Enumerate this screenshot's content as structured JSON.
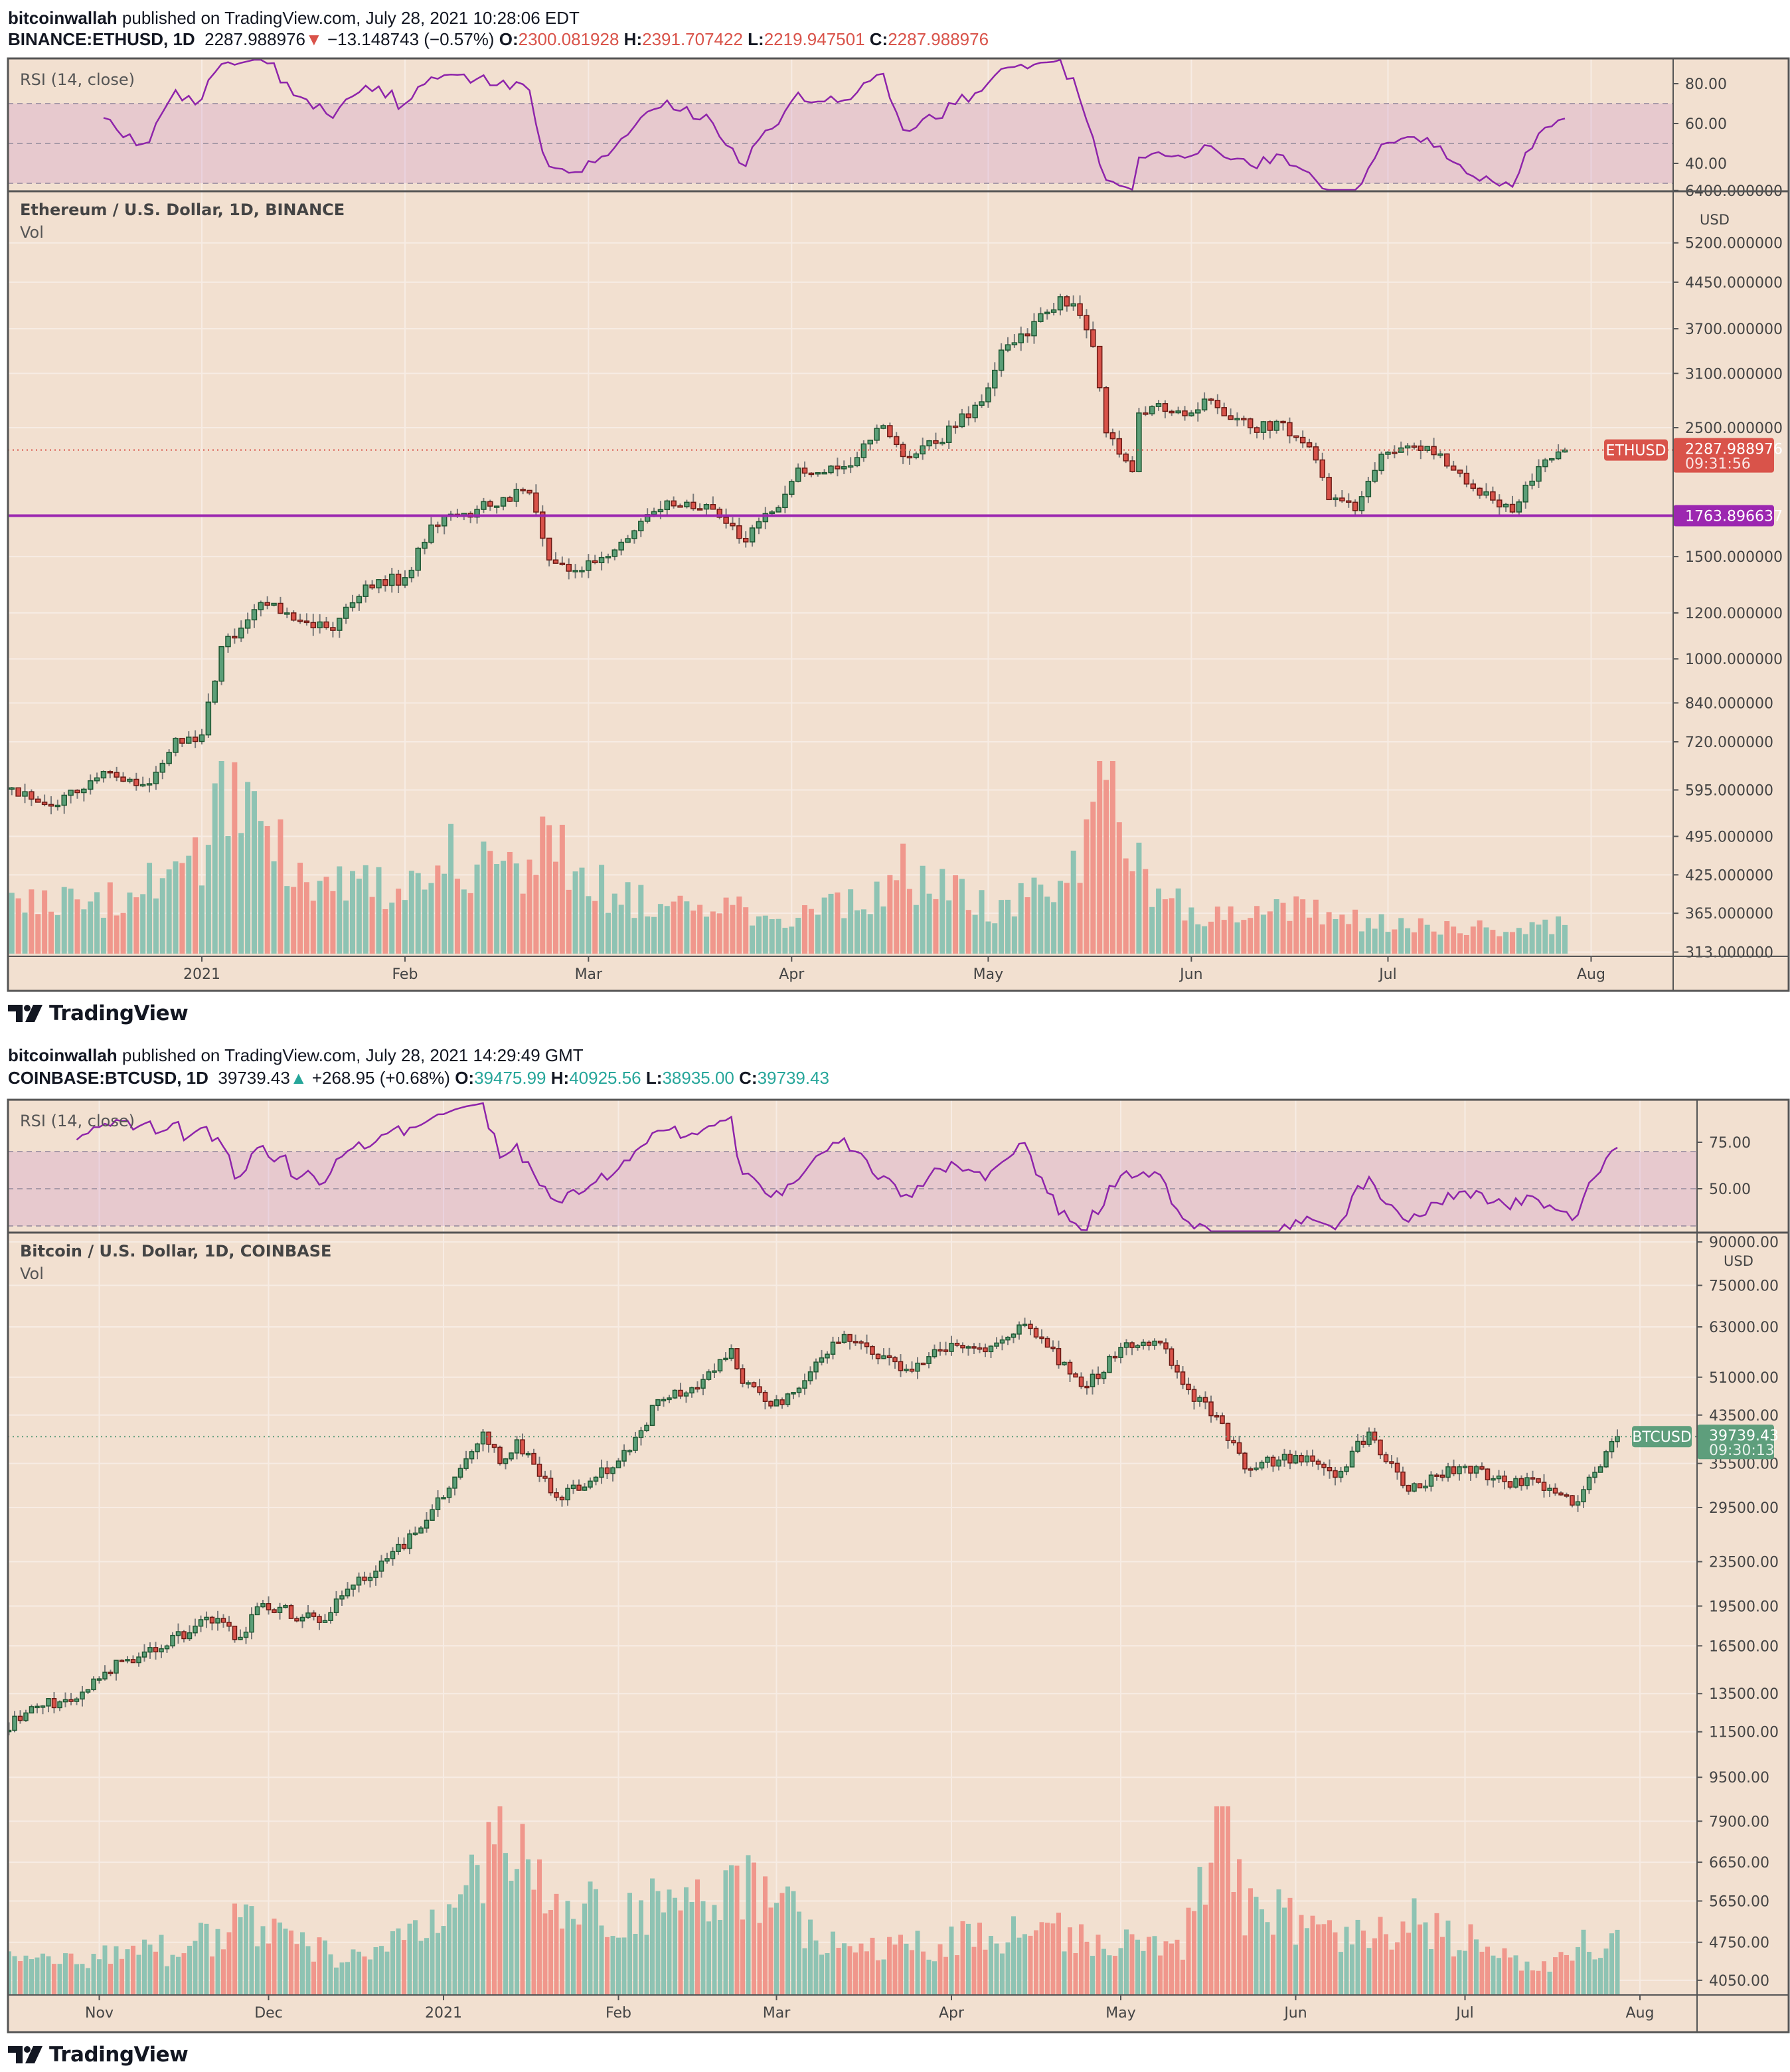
{
  "charts": [
    {
      "id": "eth",
      "header": {
        "author": "bitcoinwallah",
        "published": "published on TradingView.com, July 28, 2021 10:28:06 EDT",
        "symbol": "BINANCE:ETHUSD, 1D",
        "price": "2287.988976",
        "direction_icon": "triangle-down-icon",
        "direction_glyph": "▼",
        "change": "−13.148743 (−0.57%)",
        "o_label": "O:",
        "o": "2300.081928",
        "h_label": "H:",
        "h": "2391.707422",
        "l_label": "L:",
        "l": "2219.947501",
        "c_label": "C:",
        "c": "2287.988976",
        "value_color": "#d9534a"
      },
      "rsi_label": "RSI (14, close)",
      "title": "Ethereum / U.S. Dollar, 1D, BINANCE",
      "vol_label": "Vol",
      "currency": "USD",
      "price_ticks": [
        "6400.000000",
        "5200.000000",
        "4450.000000",
        "3700.000000",
        "3100.000000",
        "2500.000000",
        "1500.000000",
        "1200.000000",
        "1000.000000",
        "840.000000",
        "720.000000",
        "595.000000",
        "495.000000",
        "425.000000",
        "365.000000",
        "313.000000"
      ],
      "rsi_ticks": [
        "80.00",
        "60.00",
        "40.00"
      ],
      "time_ticks": [
        {
          "label": "2021",
          "date": "2021-01-01"
        },
        {
          "label": "Feb",
          "date": "2021-02-01"
        },
        {
          "label": "Mar",
          "date": "2021-03-01"
        },
        {
          "label": "Apr",
          "date": "2021-04-01"
        },
        {
          "label": "May",
          "date": "2021-05-01"
        },
        {
          "label": "Jun",
          "date": "2021-06-01"
        },
        {
          "label": "Jul",
          "date": "2021-07-01"
        },
        {
          "label": "Aug",
          "date": "2021-08-01"
        }
      ],
      "last_price": {
        "symbol": "ETHUSD",
        "value": "2287.988976",
        "countdown": "09:31:56",
        "color": "#d9534a"
      },
      "horizontal_line": {
        "value": "1763.896637",
        "color": "#9c27b0"
      }
    },
    {
      "id": "btc",
      "header": {
        "author": "bitcoinwallah",
        "published": "published on TradingView.com, July 28, 2021 14:29:49 GMT",
        "symbol": "COINBASE:BTCUSD, 1D",
        "price": "39739.43",
        "direction_icon": "triangle-up-icon",
        "direction_glyph": "▲",
        "change": "+268.95 (+0.68%)",
        "o_label": "O:",
        "o": "39475.99",
        "h_label": "H:",
        "h": "40925.56",
        "l_label": "L:",
        "l": "38935.00",
        "c_label": "C:",
        "c": "39739.43",
        "value_color": "#26a69a"
      },
      "rsi_label": "RSI (14, close)",
      "title": "Bitcoin / U.S. Dollar, 1D, COINBASE",
      "vol_label": "Vol",
      "currency": "USD",
      "price_ticks": [
        "90000.00",
        "75000.00",
        "63000.00",
        "51000.00",
        "43500.00",
        "35500.00",
        "29500.00",
        "23500.00",
        "19500.00",
        "16500.00",
        "13500.00",
        "11500.00",
        "9500.00",
        "7900.00",
        "6650.00",
        "5650.00",
        "4750.00",
        "4050.00"
      ],
      "rsi_ticks": [
        "75.00",
        "50.00"
      ],
      "time_ticks": [
        {
          "label": "Nov",
          "date": "2020-11-01"
        },
        {
          "label": "Dec",
          "date": "2020-12-01"
        },
        {
          "label": "2021",
          "date": "2021-01-01"
        },
        {
          "label": "Feb",
          "date": "2021-02-01"
        },
        {
          "label": "Mar",
          "date": "2021-03-01"
        },
        {
          "label": "Apr",
          "date": "2021-04-01"
        },
        {
          "label": "May",
          "date": "2021-05-01"
        },
        {
          "label": "Jun",
          "date": "2021-06-01"
        },
        {
          "label": "Jul",
          "date": "2021-07-01"
        },
        {
          "label": "Aug",
          "date": "2021-08-01"
        }
      ],
      "last_price": {
        "symbol": "BTCUSD",
        "value": "39739.43",
        "countdown": "09:30:13",
        "color": "#5e9e7c"
      }
    }
  ],
  "branding": "TradingView",
  "colors": {
    "background": "#f2e0d0",
    "up": "#5b9e77",
    "up_border": "#1e5631",
    "down": "#d9534a",
    "down_border": "#6b1a14",
    "vol_up": "#8ec3b3",
    "vol_down": "#f0978c",
    "rsi_line": "#8e24aa"
  },
  "chart_data": [
    {
      "type": "candlestick",
      "title": "Ethereum / U.S. Dollar, 1D, BINANCE",
      "scale": "log",
      "ylim": [
        300,
        6400
      ],
      "approx_closes": [
        [
          "2020-12-03",
          600
        ],
        [
          "2020-12-10",
          560
        ],
        [
          "2020-12-17",
          640
        ],
        [
          "2020-12-24",
          610
        ],
        [
          "2020-12-28",
          730
        ],
        [
          "2021-01-01",
          740
        ],
        [
          "2021-01-04",
          1050
        ],
        [
          "2021-01-10",
          1250
        ],
        [
          "2021-01-14",
          1200
        ],
        [
          "2021-01-21",
          1120
        ],
        [
          "2021-01-26",
          1340
        ],
        [
          "2021-02-01",
          1380
        ],
        [
          "2021-02-05",
          1700
        ],
        [
          "2021-02-10",
          1780
        ],
        [
          "2021-02-19",
          1950
        ],
        [
          "2021-02-20",
          1930
        ],
        [
          "2021-02-23",
          1480
        ],
        [
          "2021-02-28",
          1420
        ],
        [
          "2021-03-05",
          1540
        ],
        [
          "2021-03-13",
          1870
        ],
        [
          "2021-03-20",
          1810
        ],
        [
          "2021-03-25",
          1590
        ],
        [
          "2021-03-31",
          1920
        ],
        [
          "2021-04-02",
          2130
        ],
        [
          "2021-04-10",
          2150
        ],
        [
          "2021-04-15",
          2520
        ],
        [
          "2021-04-18",
          2230
        ],
        [
          "2021-04-23",
          2350
        ],
        [
          "2021-04-30",
          2770
        ],
        [
          "2021-05-03",
          3400
        ],
        [
          "2021-05-05",
          3500
        ],
        [
          "2021-05-10",
          3950
        ],
        [
          "2021-05-12",
          4200
        ],
        [
          "2021-05-15",
          3900
        ],
        [
          "2021-05-17",
          3450
        ],
        [
          "2021-05-19",
          2450
        ],
        [
          "2021-05-23",
          2100
        ],
        [
          "2021-05-24",
          2650
        ],
        [
          "2021-05-27",
          2750
        ],
        [
          "2021-06-01",
          2650
        ],
        [
          "2021-06-03",
          2800
        ],
        [
          "2021-06-10",
          2500
        ],
        [
          "2021-06-15",
          2550
        ],
        [
          "2021-06-20",
          2200
        ],
        [
          "2021-06-22",
          1880
        ],
        [
          "2021-06-26",
          1800
        ],
        [
          "2021-06-30",
          2250
        ],
        [
          "2021-07-07",
          2320
        ],
        [
          "2021-07-13",
          2000
        ],
        [
          "2021-07-20",
          1790
        ],
        [
          "2021-07-22",
          1990
        ],
        [
          "2021-07-25",
          2200
        ],
        [
          "2021-07-28",
          2288
        ]
      ],
      "relative_volume": [
        [
          "2020-12-03",
          0.25
        ],
        [
          "2020-12-20",
          0.3
        ],
        [
          "2021-01-01",
          0.5
        ],
        [
          "2021-01-04",
          0.9
        ],
        [
          "2021-01-11",
          0.6
        ],
        [
          "2021-01-20",
          0.4
        ],
        [
          "2021-02-01",
          0.35
        ],
        [
          "2021-02-05",
          0.55
        ],
        [
          "2021-02-20",
          0.45
        ],
        [
          "2021-02-23",
          0.6
        ],
        [
          "2021-03-05",
          0.3
        ],
        [
          "2021-03-20",
          0.25
        ],
        [
          "2021-04-01",
          0.2
        ],
        [
          "2021-04-15",
          0.3
        ],
        [
          "2021-04-18",
          0.45
        ],
        [
          "2021-05-01",
          0.25
        ],
        [
          "2021-05-12",
          0.35
        ],
        [
          "2021-05-19",
          0.95
        ],
        [
          "2021-05-23",
          0.5
        ],
        [
          "2021-06-01",
          0.2
        ],
        [
          "2021-06-21",
          0.25
        ],
        [
          "2021-07-01",
          0.15
        ],
        [
          "2021-07-28",
          0.15
        ]
      ],
      "rsi": {
        "period": 14,
        "bands": [
          70,
          50,
          30
        ],
        "range": [
          26,
          93
        ]
      }
    },
    {
      "type": "candlestick",
      "title": "Bitcoin / U.S. Dollar, 1D, COINBASE",
      "scale": "log",
      "ylim": [
        3900,
        90000
      ],
      "approx_closes": [
        [
          "2020-10-14",
          11400
        ],
        [
          "2020-10-21",
          12800
        ],
        [
          "2020-10-28",
          13200
        ],
        [
          "2020-11-05",
          15500
        ],
        [
          "2020-11-12",
          16300
        ],
        [
          "2020-11-20",
          18600
        ],
        [
          "2020-11-26",
          17100
        ],
        [
          "2020-11-30",
          19700
        ],
        [
          "2020-12-10",
          18200
        ],
        [
          "2020-12-16",
          21300
        ],
        [
          "2020-12-22",
          23800
        ],
        [
          "2020-12-27",
          26500
        ],
        [
          "2021-01-02",
          32000
        ],
        [
          "2021-01-08",
          40500
        ],
        [
          "2021-01-11",
          35500
        ],
        [
          "2021-01-14",
          39200
        ],
        [
          "2021-01-21",
          30800
        ],
        [
          "2021-01-28",
          33500
        ],
        [
          "2021-02-03",
          37500
        ],
        [
          "2021-02-08",
          46400
        ],
        [
          "2021-02-15",
          48700
        ],
        [
          "2021-02-21",
          57500
        ],
        [
          "2021-02-23",
          49700
        ],
        [
          "2021-02-28",
          45200
        ],
        [
          "2021-03-05",
          48700
        ],
        [
          "2021-03-13",
          61000
        ],
        [
          "2021-03-17",
          58000
        ],
        [
          "2021-03-25",
          52300
        ],
        [
          "2021-04-01",
          58800
        ],
        [
          "2021-04-08",
          58100
        ],
        [
          "2021-04-13",
          63500
        ],
        [
          "2021-04-17",
          60000
        ],
        [
          "2021-04-22",
          51700
        ],
        [
          "2021-04-25",
          49000
        ],
        [
          "2021-05-01",
          57800
        ],
        [
          "2021-05-08",
          58900
        ],
        [
          "2021-05-12",
          49500
        ],
        [
          "2021-05-19",
          42000
        ],
        [
          "2021-05-23",
          34700
        ],
        [
          "2021-06-01",
          36700
        ],
        [
          "2021-06-08",
          33500
        ],
        [
          "2021-06-14",
          40500
        ],
        [
          "2021-06-21",
          31600
        ],
        [
          "2021-06-30",
          35000
        ],
        [
          "2021-07-08",
          32900
        ],
        [
          "2021-07-14",
          32800
        ],
        [
          "2021-07-20",
          29800
        ],
        [
          "2021-07-24",
          34200
        ],
        [
          "2021-07-26",
          37300
        ],
        [
          "2021-07-28",
          39739
        ]
      ],
      "relative_volume": [
        [
          "2020-10-14",
          0.2
        ],
        [
          "2020-11-15",
          0.25
        ],
        [
          "2020-11-26",
          0.4
        ],
        [
          "2020-12-15",
          0.2
        ],
        [
          "2021-01-03",
          0.4
        ],
        [
          "2021-01-11",
          0.9
        ],
        [
          "2021-01-21",
          0.45
        ],
        [
          "2021-02-08",
          0.5
        ],
        [
          "2021-02-23",
          0.6
        ],
        [
          "2021-03-15",
          0.25
        ],
        [
          "2021-04-18",
          0.35
        ],
        [
          "2021-05-12",
          0.3
        ],
        [
          "2021-05-19",
          0.95
        ],
        [
          "2021-05-23",
          0.5
        ],
        [
          "2021-06-10",
          0.3
        ],
        [
          "2021-06-22",
          0.4
        ],
        [
          "2021-07-15",
          0.15
        ],
        [
          "2021-07-27",
          0.35
        ]
      ],
      "rsi": {
        "period": 14,
        "bands": [
          70,
          50,
          30
        ],
        "range": [
          26,
          98
        ]
      }
    }
  ]
}
